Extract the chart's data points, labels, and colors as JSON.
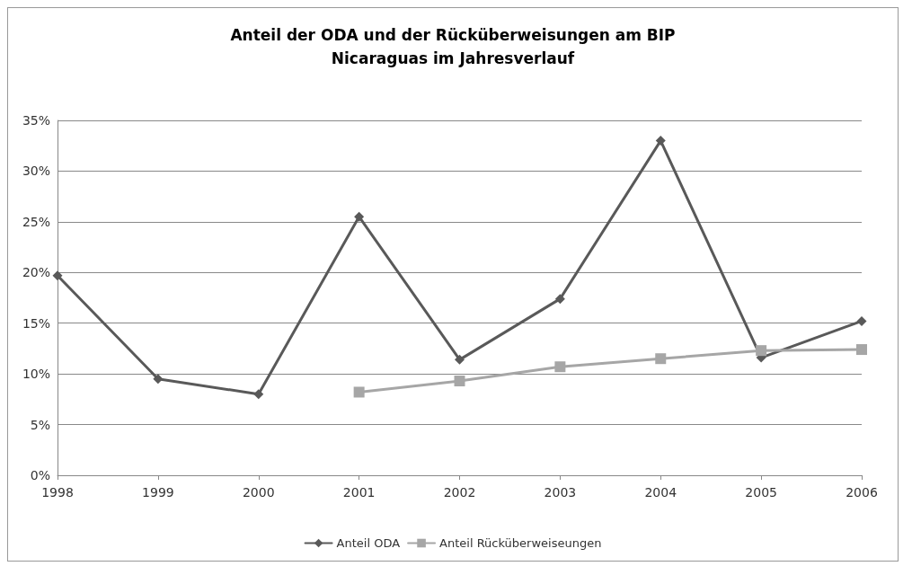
{
  "chart_data": {
    "type": "line",
    "title": "Anteil der ODA und der Rücküberweisungen am BIP\nNicaraguas im Jahresverlauf",
    "categories": [
      "1998",
      "1999",
      "2000",
      "2001",
      "2002",
      "2003",
      "2004",
      "2005",
      "2006"
    ],
    "series": [
      {
        "name": "Anteil ODA",
        "color": "#595959",
        "marker": "diamond",
        "values": [
          19.7,
          9.5,
          8.0,
          25.5,
          11.4,
          17.4,
          33.0,
          11.6,
          15.2
        ]
      },
      {
        "name": "Anteil Rücküberweiseungen",
        "color": "#a6a6a6",
        "marker": "square",
        "values": [
          null,
          null,
          null,
          8.2,
          9.3,
          10.7,
          11.5,
          12.3,
          12.4
        ]
      }
    ],
    "ylim": [
      0,
      35
    ],
    "yticks": [
      {
        "value": 0,
        "label": "0%"
      },
      {
        "value": 5,
        "label": "5%"
      },
      {
        "value": 10,
        "label": "10%"
      },
      {
        "value": 15,
        "label": "15%"
      },
      {
        "value": 20,
        "label": "20%"
      },
      {
        "value": 25,
        "label": "25%"
      },
      {
        "value": 30,
        "label": "30%"
      },
      {
        "value": 35,
        "label": "35%"
      }
    ],
    "grid": "y",
    "legend": "bottom",
    "line_style": "solid"
  }
}
